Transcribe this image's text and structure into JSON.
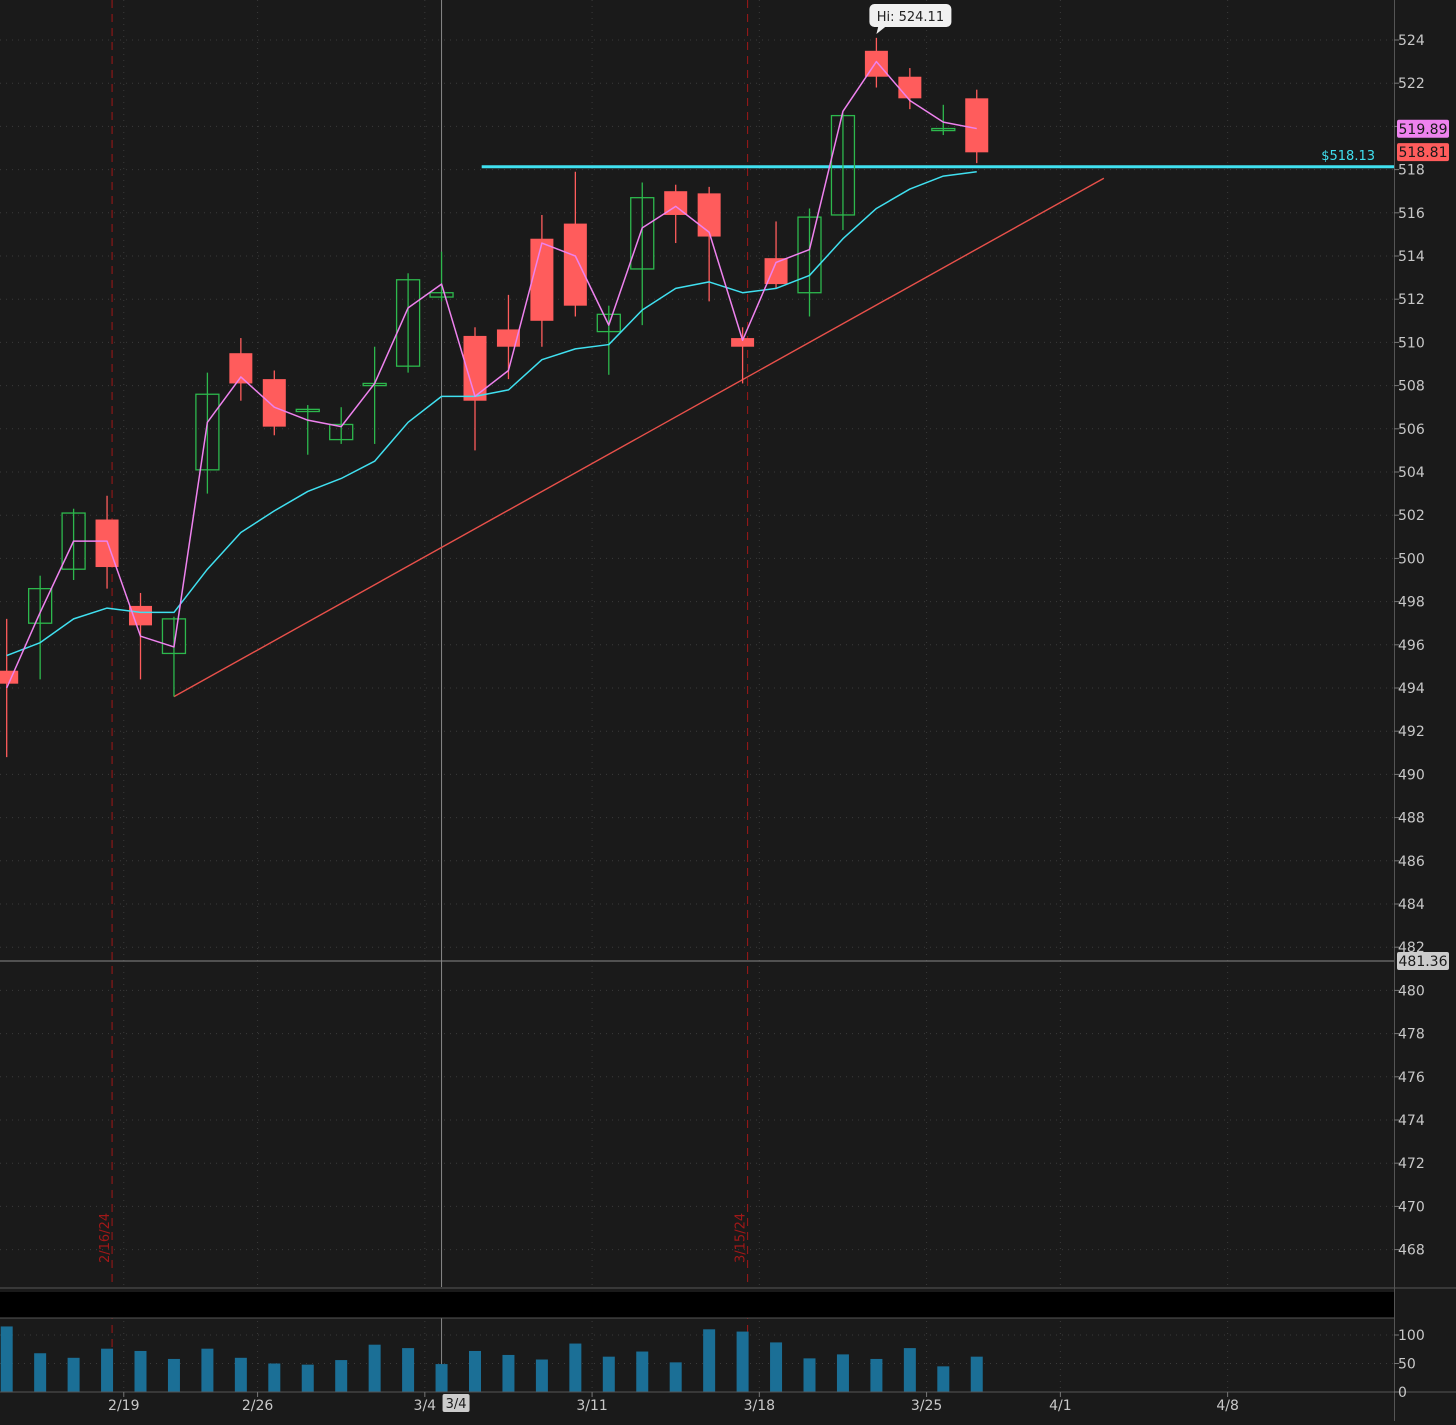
{
  "chart_data": {
    "type": "candlestick",
    "colors": {
      "background": "#1a1a1a",
      "up": "#2db84d",
      "down": "#ff5c5c",
      "ema_fast": "#ee82ee",
      "ema_slow": "#40e0f0",
      "resistance": "#40e0f0",
      "trendline": "#e8504a",
      "volume": "#1b6f96",
      "axis_text": "#c8c8c8",
      "grid": "#3a3a3a",
      "event_line": "#a01818"
    },
    "price_axis": {
      "range": [
        466,
        526
      ],
      "ticks": [
        468,
        470,
        472,
        474,
        476,
        478,
        480,
        482,
        484,
        486,
        488,
        490,
        492,
        494,
        496,
        498,
        500,
        502,
        504,
        506,
        508,
        510,
        512,
        514,
        516,
        518,
        520,
        522,
        524
      ]
    },
    "volume_axis": {
      "range": [
        0,
        130
      ],
      "ticks": [
        "100",
        "50",
        "0"
      ],
      "tick_values": [
        100,
        50,
        0
      ]
    },
    "x_labels": [
      {
        "label": "2/19",
        "slot": 3.5
      },
      {
        "label": "2/26",
        "slot": 7.5
      },
      {
        "label": "3/4",
        "slot": 12.5
      },
      {
        "label": "3/11",
        "slot": 17.5
      },
      {
        "label": "3/18",
        "slot": 22.5
      },
      {
        "label": "3/25",
        "slot": 27.5
      },
      {
        "label": "4/1",
        "slot": 31.5
      },
      {
        "label": "4/8",
        "slot": 36.5
      }
    ],
    "x_cursor_label": "3/4",
    "candles": [
      {
        "date": "2/14",
        "open": 494.8,
        "high": 497.2,
        "low": 490.8,
        "close": 494.2,
        "volume": 115
      },
      {
        "date": "2/15",
        "open": 497.0,
        "high": 499.2,
        "low": 494.4,
        "close": 498.6,
        "volume": 68
      },
      {
        "date": "2/16",
        "open": 499.5,
        "high": 502.3,
        "low": 499.0,
        "close": 502.1,
        "volume": 60
      },
      {
        "date": "2/20",
        "open": 501.8,
        "high": 502.9,
        "low": 498.6,
        "close": 499.6,
        "volume": 76
      },
      {
        "date": "2/21",
        "open": 497.8,
        "high": 498.4,
        "low": 494.4,
        "close": 496.9,
        "volume": 72
      },
      {
        "date": "2/22",
        "open": 495.6,
        "high": 497.3,
        "low": 493.6,
        "close": 497.2,
        "volume": 58
      },
      {
        "date": "2/23",
        "open": 504.1,
        "high": 508.6,
        "low": 503.0,
        "close": 507.6,
        "volume": 76
      },
      {
        "date": "2/26",
        "open": 509.5,
        "high": 510.2,
        "low": 507.3,
        "close": 508.1,
        "volume": 60
      },
      {
        "date": "2/27",
        "open": 508.3,
        "high": 508.7,
        "low": 505.7,
        "close": 506.1,
        "volume": 50
      },
      {
        "date": "2/28",
        "open": 506.8,
        "high": 507.1,
        "low": 504.8,
        "close": 506.9,
        "volume": 48
      },
      {
        "date": "2/29",
        "open": 505.5,
        "high": 507.0,
        "low": 505.3,
        "close": 506.2,
        "volume": 56
      },
      {
        "date": "3/1",
        "open": 508.0,
        "high": 509.8,
        "low": 505.3,
        "close": 508.1,
        "volume": 83
      },
      {
        "date": "3/4",
        "open": 508.9,
        "high": 513.2,
        "low": 508.6,
        "close": 512.9,
        "volume": 77
      },
      {
        "date": "3/5",
        "open": 512.1,
        "high": 514.2,
        "low": 511.9,
        "close": 512.3,
        "volume": 49
      },
      {
        "date": "3/6",
        "open": 510.3,
        "high": 510.7,
        "low": 505.0,
        "close": 507.3,
        "volume": 72
      },
      {
        "date": "3/7",
        "open": 510.6,
        "high": 512.2,
        "low": 508.3,
        "close": 509.8,
        "volume": 65
      },
      {
        "date": "3/8",
        "open": 514.8,
        "high": 515.9,
        "low": 509.8,
        "close": 511.0,
        "volume": 57
      },
      {
        "date": "3/11",
        "open": 515.5,
        "high": 517.9,
        "low": 511.2,
        "close": 511.7,
        "volume": 85
      },
      {
        "date": "3/12",
        "open": 510.5,
        "high": 511.7,
        "low": 508.5,
        "close": 511.3,
        "volume": 62
      },
      {
        "date": "3/13",
        "open": 513.4,
        "high": 517.4,
        "low": 510.8,
        "close": 516.7,
        "volume": 71
      },
      {
        "date": "3/14",
        "open": 517.0,
        "high": 517.3,
        "low": 514.6,
        "close": 515.9,
        "volume": 52
      },
      {
        "date": "3/15",
        "open": 516.9,
        "high": 517.2,
        "low": 511.9,
        "close": 514.9,
        "volume": 110
      },
      {
        "date": "3/18",
        "open": 510.2,
        "high": 510.7,
        "low": 508.1,
        "close": 509.8,
        "volume": 106
      },
      {
        "date": "3/19",
        "open": 513.9,
        "high": 515.6,
        "low": 512.5,
        "close": 512.7,
        "volume": 87
      },
      {
        "date": "3/20",
        "open": 512.3,
        "high": 516.2,
        "low": 511.2,
        "close": 515.8,
        "volume": 59
      },
      {
        "date": "3/21",
        "open": 515.9,
        "high": 520.6,
        "low": 515.2,
        "close": 520.5,
        "volume": 66
      },
      {
        "date": "3/22",
        "open": 523.5,
        "high": 524.1,
        "low": 521.8,
        "close": 522.3,
        "volume": 58
      },
      {
        "date": "3/25",
        "open": 522.3,
        "high": 522.7,
        "low": 520.8,
        "close": 521.3,
        "volume": 77
      },
      {
        "date": "3/26",
        "open": 519.9,
        "high": 521.0,
        "low": 519.6,
        "close": 519.9,
        "volume": 45
      },
      {
        "date": "3/27",
        "open": 521.3,
        "high": 521.7,
        "low": 518.3,
        "close": 518.8,
        "volume": 62
      }
    ],
    "ema_fast": [
      494.0,
      497.5,
      500.8,
      500.8,
      496.4,
      495.9,
      506.3,
      508.4,
      507.0,
      506.4,
      506.1,
      508.1,
      511.6,
      512.7,
      507.5,
      508.7,
      514.6,
      514.0,
      510.8,
      515.3,
      516.3,
      515.1,
      510.1,
      513.7,
      514.3,
      520.7,
      523.0,
      521.2,
      520.2,
      519.9
    ],
    "ema_slow": [
      495.5,
      496.1,
      497.2,
      497.7,
      497.5,
      497.5,
      499.5,
      501.2,
      502.2,
      503.1,
      503.7,
      504.5,
      506.3,
      507.5,
      507.5,
      507.8,
      509.2,
      509.7,
      509.9,
      511.5,
      512.5,
      512.8,
      512.3,
      512.5,
      513.1,
      514.8,
      516.2,
      517.1,
      517.7,
      517.9
    ],
    "last_close_label": "518.81",
    "ema_value_label": "519.89",
    "cursor_price_label": "481.36",
    "cursor_price": 481.36,
    "cursor_slot": 13,
    "high_label": "Hi: 524.11",
    "high_slot": 26,
    "high_price": 524.11,
    "resistance": {
      "price": 518.13,
      "label": "$518.13",
      "from_slot": 14.2
    },
    "trendline": {
      "start_slot": 5,
      "start_price": 493.6,
      "end_slot": 32.8,
      "end_price": 517.6
    },
    "event_lines": [
      {
        "label": "2/16/24",
        "slot": 3.15
      },
      {
        "label": "3/15/24",
        "slot": 22.15
      }
    ]
  }
}
